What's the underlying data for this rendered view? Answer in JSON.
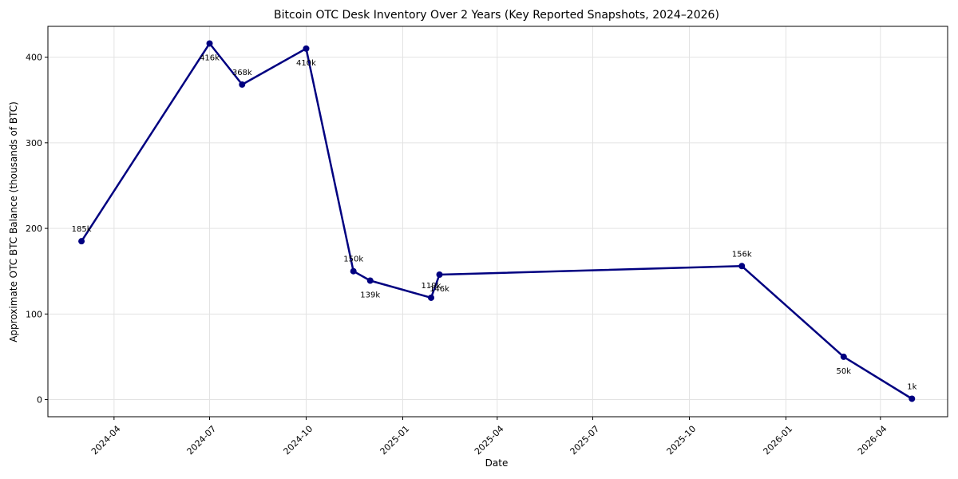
{
  "chart_data": {
    "type": "line",
    "title": "Bitcoin OTC Desk Inventory Over 2 Years (Key Reported Snapshots, 2024–2026)",
    "xlabel": "Date",
    "ylabel": "Approximate OTC BTC Balance (thousands of BTC)",
    "grid": true,
    "colors": {
      "line": "#000080",
      "marker": "#000080"
    },
    "xlim": [
      "2024-01-29",
      "2026-06-04"
    ],
    "ylim": [
      -20,
      436
    ],
    "x_ticks": [
      "2024-04-01",
      "2024-07-01",
      "2024-10-01",
      "2025-01-01",
      "2025-04-01",
      "2025-07-01",
      "2025-10-01",
      "2026-01-01",
      "2026-04-01"
    ],
    "x_tick_labels": [
      "2024-04",
      "2024-07",
      "2024-10",
      "2025-01",
      "2025-04",
      "2025-07",
      "2025-10",
      "2026-01",
      "2026-04"
    ],
    "y_ticks": [
      0,
      100,
      200,
      300,
      400
    ],
    "y_tick_labels": [
      "0",
      "100",
      "200",
      "300",
      "400"
    ],
    "series": [
      {
        "points": [
          {
            "x": "2024-03-01",
            "y": 185,
            "label": "185k",
            "label_pos": "above"
          },
          {
            "x": "2024-07-01",
            "y": 416,
            "label": "416k",
            "label_pos": "below"
          },
          {
            "x": "2024-08-01",
            "y": 368,
            "label": "368k",
            "label_pos": "above"
          },
          {
            "x": "2024-10-01",
            "y": 410,
            "label": "410k",
            "label_pos": "below"
          },
          {
            "x": "2024-11-15",
            "y": 150,
            "label": "150k",
            "label_pos": "above"
          },
          {
            "x": "2024-12-01",
            "y": 139,
            "label": "139k",
            "label_pos": "below"
          },
          {
            "x": "2025-01-28",
            "y": 119,
            "label": "119k",
            "label_pos": "above"
          },
          {
            "x": "2025-02-05",
            "y": 146,
            "label": "146k",
            "label_pos": "below"
          },
          {
            "x": "2025-11-20",
            "y": 156,
            "label": "156k",
            "label_pos": "above"
          },
          {
            "x": "2026-02-25",
            "y": 50,
            "label": "50k",
            "label_pos": "below"
          },
          {
            "x": "2026-05-01",
            "y": 1,
            "label": "1k",
            "label_pos": "above"
          }
        ]
      }
    ]
  }
}
